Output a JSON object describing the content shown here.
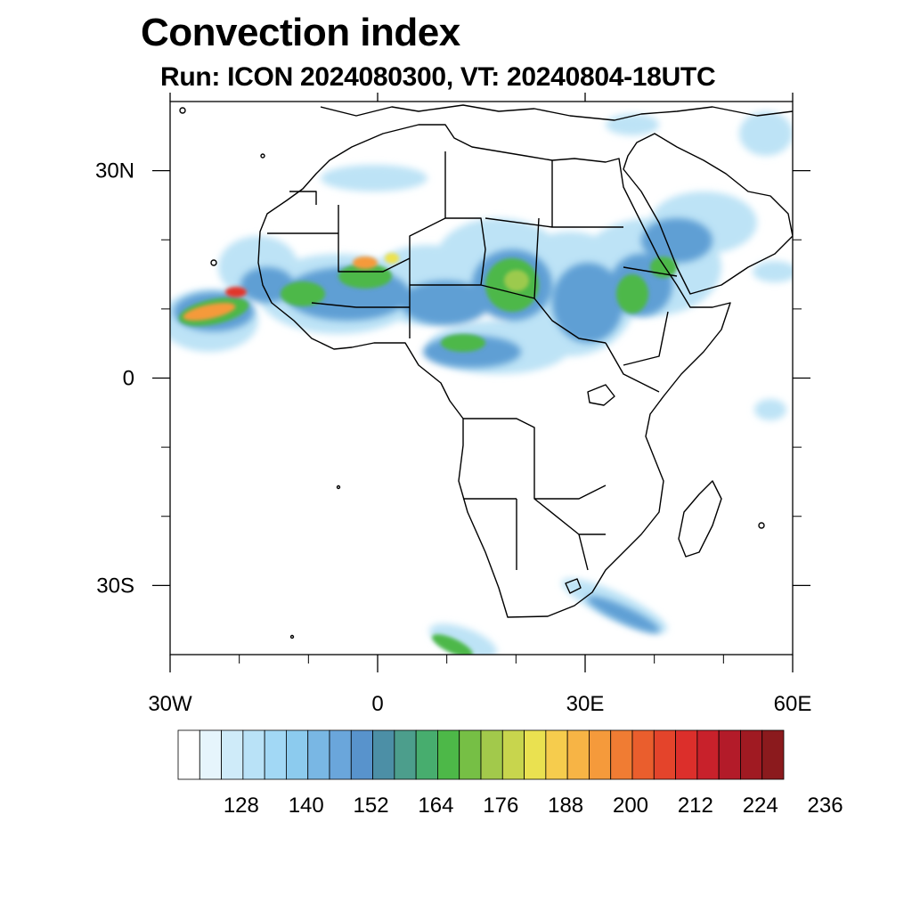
{
  "title": "Convection index",
  "subtitle": "Run: ICON 2024080300,  VT: 20240804-18UTC",
  "map": {
    "lon_range": [
      -30,
      60
    ],
    "lat_range": [
      -40,
      40
    ],
    "lat_ticks": [
      {
        "lat": 30,
        "label": "30N"
      },
      {
        "lat": 0,
        "label": "0"
      },
      {
        "lat": -30,
        "label": "30S"
      }
    ],
    "lon_ticks": [
      {
        "lon": -30,
        "label": "30W"
      },
      {
        "lon": 0,
        "label": "0"
      },
      {
        "lon": 30,
        "label": "30E"
      },
      {
        "lon": 60,
        "label": "60E"
      }
    ],
    "minor_lon_ticks": [
      -20,
      -10,
      10,
      20,
      40,
      50
    ],
    "minor_lat_ticks": [
      20,
      10,
      -10,
      -20
    ],
    "field_colors": {
      "background": "#ffffff",
      "low": "#e3f3fb",
      "light": "#bde3f6",
      "mid": "#8ccbee",
      "blue": "#5e9fd4",
      "teal": "#4d9ca3",
      "green": "#4db848",
      "lime": "#9cca4e",
      "yellow": "#ede250",
      "orange": "#f59a3b",
      "red": "#e1362a"
    }
  },
  "colorbar": {
    "colors": [
      "#ffffff",
      "#e6f5fc",
      "#cfebf9",
      "#b9e2f7",
      "#a2d8f5",
      "#8ccbee",
      "#79b7e4",
      "#6aa6db",
      "#5893cc",
      "#4c8fa6",
      "#4c9e8c",
      "#47ad6e",
      "#4db848",
      "#76bf45",
      "#a2c94b",
      "#c8d54d",
      "#eae150",
      "#f6cc4d",
      "#f7b445",
      "#f59a3b",
      "#f07c33",
      "#ea5e2d",
      "#e4442b",
      "#dc2f2b",
      "#c8212b",
      "#b31b29",
      "#a01a22",
      "#8b1a1d"
    ],
    "labels": [
      "128",
      "140",
      "152",
      "164",
      "176",
      "188",
      "200",
      "212",
      "224",
      "236"
    ]
  }
}
